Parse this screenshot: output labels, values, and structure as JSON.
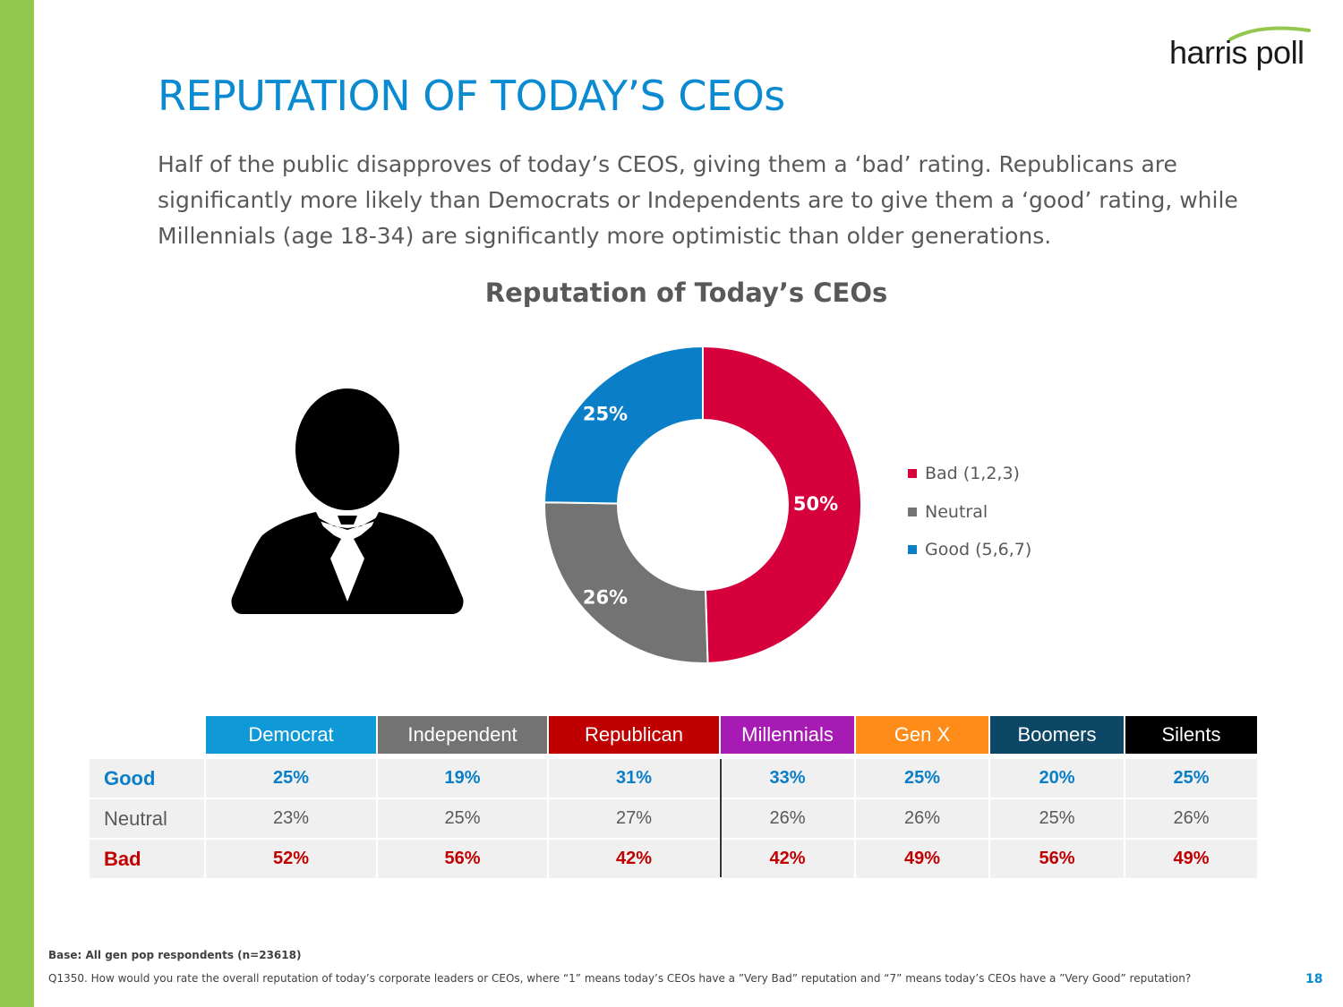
{
  "logo": {
    "text": "harris poll"
  },
  "slide": {
    "title": "REPUTATION OF TODAY’S CEOs",
    "subtitle": "Half of the public disapproves of today’s CEOS, giving them a ‘bad’ rating. Republicans are significantly more likely than Democrats or Independents are to give them a ‘good’ rating, while Millennials (age 18-34) are significantly more optimistic than older generations.",
    "page_number": "18"
  },
  "chart_data": {
    "type": "pie",
    "variant": "donut",
    "title": "Reputation of Today’s CEOs",
    "categories": [
      "Bad (1,2,3)",
      "Neutral",
      "Good (5,6,7)"
    ],
    "values": [
      50,
      26,
      25
    ],
    "labels": [
      "50%",
      "26%",
      "25%"
    ],
    "colors": [
      "#d5003c",
      "#737373",
      "#0a7fc7"
    ],
    "legend_position": "right"
  },
  "table": {
    "columns": [
      {
        "name": "Democrat",
        "color": "#0f9ad7"
      },
      {
        "name": "Independent",
        "color": "#737373"
      },
      {
        "name": "Republican",
        "color": "#c00000"
      },
      {
        "name": "Millennials",
        "color": "#a51bb3"
      },
      {
        "name": "Gen X",
        "color": "#ff8c19"
      },
      {
        "name": "Boomers",
        "color": "#0d4766"
      },
      {
        "name": "Silents",
        "color": "#000000"
      }
    ],
    "rows": [
      {
        "label": "Good",
        "color": "#0a7fc7",
        "values": [
          "25%",
          "19%",
          "31%",
          "33%",
          "25%",
          "20%",
          "25%"
        ]
      },
      {
        "label": "Neutral",
        "color": "#595959",
        "values": [
          "23%",
          "25%",
          "27%",
          "26%",
          "26%",
          "25%",
          "26%"
        ]
      },
      {
        "label": "Bad",
        "color": "#c00000",
        "values": [
          "52%",
          "56%",
          "42%",
          "42%",
          "49%",
          "56%",
          "49%"
        ]
      }
    ]
  },
  "footer": {
    "base": "Base: All gen pop respondents (n=23618)",
    "question": "Q1350. How would you rate the overall reputation of today’s corporate leaders or CEOs,  where “1” means today’s CEOs have a ”Very Bad” reputation and “7” means today’s CEOs have a ”Very Good” reputation?"
  }
}
